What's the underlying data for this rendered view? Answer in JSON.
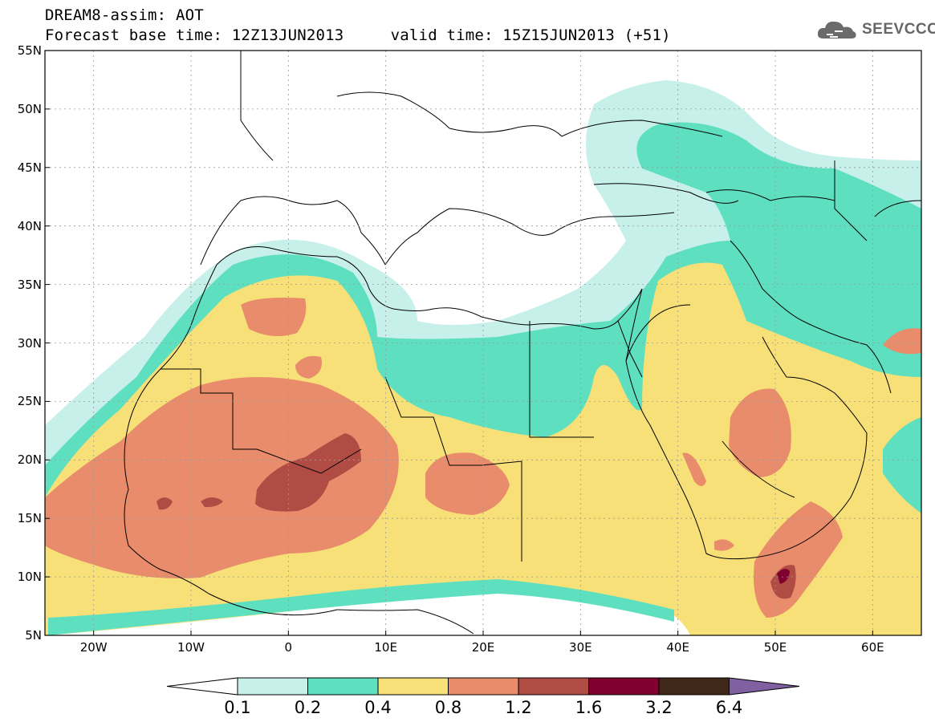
{
  "header": {
    "title_line1": "DREAM8-assim: AOT",
    "title_line2": "Forecast base time: 12Z13JUN2013     valid time: 15Z15JUN2013 (+51)"
  },
  "logo": {
    "text": "SEEVCCC",
    "icon": "cloud-icon"
  },
  "map": {
    "lat_labels": [
      "55N",
      "50N",
      "45N",
      "40N",
      "35N",
      "30N",
      "25N",
      "20N",
      "15N",
      "10N",
      "5N"
    ],
    "lon_labels": [
      "20W",
      "10W",
      "0",
      "10E",
      "20E",
      "30E",
      "40E",
      "50E",
      "60E"
    ],
    "lat_range": [
      5,
      55
    ],
    "lon_range": [
      -25,
      65
    ],
    "grid": true,
    "variable": "AOT"
  },
  "colorbar": {
    "levels": [
      "0.1",
      "0.2",
      "0.4",
      "0.8",
      "1.2",
      "1.6",
      "3.2",
      "6.4"
    ],
    "colors": [
      "#ffffff",
      "#c8f0ea",
      "#5ee0c0",
      "#f8e078",
      "#e88c6c",
      "#b04c44",
      "#800030",
      "#402818",
      "#8060a0"
    ]
  }
}
